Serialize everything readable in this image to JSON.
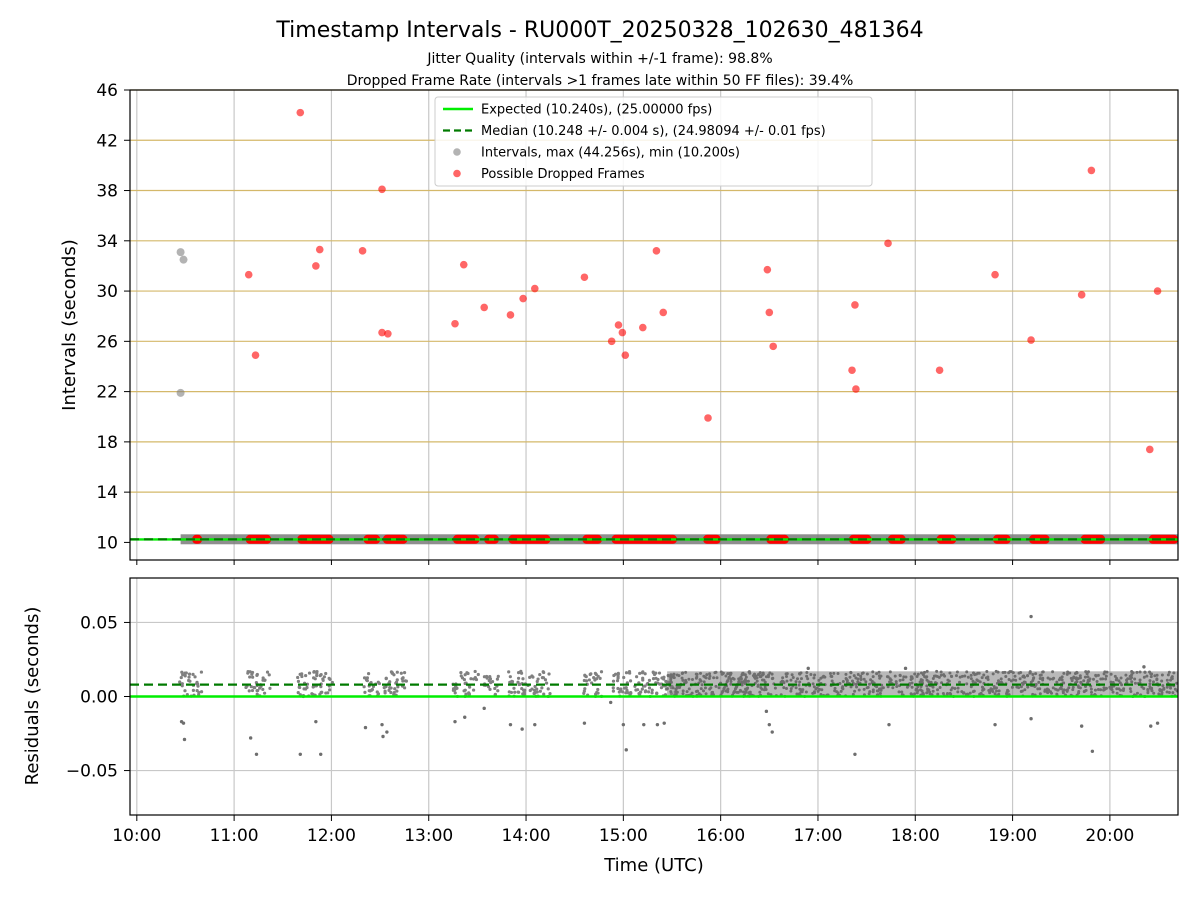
{
  "title": "Timestamp Intervals - RU000T_20250328_102630_481364",
  "subtitle_1": "Jitter Quality (intervals within +/-1 frame): 98.8%",
  "subtitle_2": "Dropped Frame Rate (intervals >1 frames late within 50 FF files): 39.4%",
  "colors": {
    "expected": "#00ee00",
    "median": "#007a00",
    "intervals": "#808080",
    "dropped": "#ff0000",
    "h_grid": "#d4b86a",
    "v_grid": "#c8c8c8",
    "bar": "#7a7a7a"
  },
  "chart_data": [
    {
      "type": "scatter",
      "ylabel": "Intervals (seconds)",
      "ylim": [
        8.6,
        46
      ],
      "y_ticks": [
        "10",
        "14",
        "18",
        "22",
        "26",
        "30",
        "34",
        "38",
        "42",
        "46"
      ],
      "xlim_hours": [
        9.93,
        20.7
      ],
      "grid": "on",
      "legend_position": "top-center",
      "legend": [
        {
          "label": "Expected (10.240s), (25.00000 fps)",
          "style": "solid-line"
        },
        {
          "label": "Median (10.248 +/- 0.004 s), (24.98094 +/- 0.01 fps)",
          "style": "dashed-line"
        },
        {
          "label": "Intervals, max (44.256s), min (10.200s)",
          "style": "grey-dot"
        },
        {
          "label": "Possible Dropped Frames",
          "style": "red-dot"
        }
      ],
      "expected": 10.24,
      "median": 10.248,
      "interval_points": [
        [
          10.45,
          33.1
        ],
        [
          10.48,
          32.5
        ],
        [
          10.45,
          21.9
        ]
      ],
      "dropped_frame_points": [
        [
          11.68,
          44.2
        ],
        [
          11.15,
          31.3
        ],
        [
          11.22,
          24.9
        ],
        [
          11.84,
          32.0
        ],
        [
          11.88,
          33.3
        ],
        [
          12.32,
          33.2
        ],
        [
          12.52,
          38.1
        ],
        [
          12.52,
          26.7
        ],
        [
          12.58,
          26.6
        ],
        [
          13.27,
          27.4
        ],
        [
          13.36,
          32.1
        ],
        [
          13.57,
          28.7
        ],
        [
          13.84,
          28.1
        ],
        [
          13.97,
          29.4
        ],
        [
          14.09,
          30.2
        ],
        [
          14.6,
          31.1
        ],
        [
          14.88,
          26.0
        ],
        [
          14.95,
          27.3
        ],
        [
          14.99,
          26.7
        ],
        [
          15.02,
          24.9
        ],
        [
          15.2,
          27.1
        ],
        [
          15.34,
          33.2
        ],
        [
          15.41,
          28.3
        ],
        [
          15.87,
          19.9
        ],
        [
          16.48,
          31.7
        ],
        [
          16.5,
          28.3
        ],
        [
          16.54,
          25.6
        ],
        [
          17.35,
          23.7
        ],
        [
          17.38,
          28.9
        ],
        [
          17.39,
          22.2
        ],
        [
          17.72,
          33.8
        ],
        [
          18.25,
          23.7
        ],
        [
          18.82,
          31.3
        ],
        [
          19.19,
          26.1
        ],
        [
          19.71,
          29.7
        ],
        [
          19.81,
          39.6
        ],
        [
          20.41,
          17.4
        ],
        [
          20.49,
          30.0
        ]
      ],
      "dropped_near_baseline_segments": [
        [
          10.57,
          10.67
        ],
        [
          11.12,
          11.38
        ],
        [
          11.65,
          12.02
        ],
        [
          12.33,
          12.5
        ],
        [
          12.53,
          12.78
        ],
        [
          13.25,
          13.52
        ],
        [
          13.57,
          13.72
        ],
        [
          13.82,
          14.25
        ],
        [
          14.58,
          14.78
        ],
        [
          14.88,
          15.55
        ],
        [
          15.82,
          16.0
        ],
        [
          16.47,
          16.7
        ],
        [
          17.32,
          17.55
        ],
        [
          17.72,
          17.9
        ],
        [
          18.22,
          18.42
        ],
        [
          18.8,
          18.98
        ],
        [
          19.17,
          19.38
        ],
        [
          19.7,
          19.95
        ],
        [
          20.4,
          20.7
        ]
      ]
    },
    {
      "type": "scatter",
      "ylabel": "Residuals (seconds)",
      "xlabel": "Time (UTC)",
      "ylim": [
        -0.08,
        0.08
      ],
      "y_ticks": [
        {
          "value": 0.05,
          "label": "0.05"
        },
        {
          "value": 0.0,
          "label": "0.00"
        },
        {
          "value": -0.05,
          "label": "−0.05"
        }
      ],
      "x_ticks": [
        {
          "hour": 10,
          "label": "10:00"
        },
        {
          "hour": 11,
          "label": "11:00"
        },
        {
          "hour": 12,
          "label": "12:00"
        },
        {
          "hour": 13,
          "label": "13:00"
        },
        {
          "hour": 14,
          "label": "14:00"
        },
        {
          "hour": 15,
          "label": "15:00"
        },
        {
          "hour": 16,
          "label": "16:00"
        },
        {
          "hour": 17,
          "label": "17:00"
        },
        {
          "hour": 18,
          "label": "18:00"
        },
        {
          "hour": 19,
          "label": "19:00"
        },
        {
          "hour": 20,
          "label": "20:00"
        }
      ],
      "xlim_hours": [
        9.93,
        20.7
      ],
      "grid": "on",
      "expected_residual": 0.0,
      "median_residual": 0.008,
      "sparse_cluster_band": [
        0.0,
        0.017
      ],
      "dense_band_start_hour": 15.45,
      "dense_band": [
        0.0,
        0.017
      ],
      "outlier_points": [
        [
          10.46,
          -0.017
        ],
        [
          10.48,
          -0.018
        ],
        [
          10.49,
          -0.029
        ],
        [
          11.17,
          -0.028
        ],
        [
          11.23,
          -0.039
        ],
        [
          11.68,
          -0.039
        ],
        [
          11.84,
          -0.017
        ],
        [
          11.89,
          -0.039
        ],
        [
          12.35,
          -0.021
        ],
        [
          12.52,
          -0.019
        ],
        [
          12.53,
          -0.027
        ],
        [
          12.57,
          -0.024
        ],
        [
          13.27,
          -0.017
        ],
        [
          13.37,
          -0.014
        ],
        [
          13.57,
          -0.008
        ],
        [
          13.84,
          -0.019
        ],
        [
          13.96,
          -0.022
        ],
        [
          14.09,
          -0.019
        ],
        [
          14.6,
          -0.018
        ],
        [
          14.87,
          -0.004
        ],
        [
          15.0,
          -0.019
        ],
        [
          15.03,
          -0.036
        ],
        [
          15.21,
          -0.019
        ],
        [
          15.35,
          -0.019
        ],
        [
          15.42,
          -0.018
        ],
        [
          16.47,
          -0.01
        ],
        [
          16.5,
          -0.019
        ],
        [
          16.53,
          -0.024
        ],
        [
          17.38,
          -0.039
        ],
        [
          17.73,
          -0.019
        ],
        [
          18.82,
          -0.019
        ],
        [
          19.19,
          -0.015
        ],
        [
          19.71,
          -0.02
        ],
        [
          19.82,
          -0.037
        ],
        [
          20.42,
          -0.02
        ],
        [
          20.49,
          -0.018
        ],
        [
          19.19,
          0.054
        ],
        [
          20.35,
          0.02
        ],
        [
          16.9,
          0.019
        ],
        [
          17.9,
          0.019
        ]
      ]
    }
  ]
}
